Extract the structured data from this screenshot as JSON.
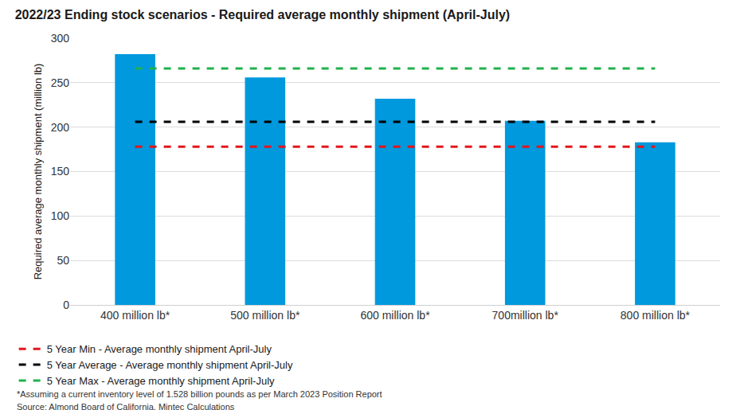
{
  "chart_data": {
    "type": "bar",
    "title": "2022/23 Ending stock scenarios - Required average monthly shipment (April-July)",
    "ylabel": "Required average monthly shipment (million lb)",
    "categories": [
      "400 million lb*",
      "500 million lb*",
      "600 million lb*",
      "700million lb*",
      "800 million lb*"
    ],
    "series": [
      {
        "type": "bar",
        "color": "#0099dd",
        "values": [
          282,
          256,
          232,
          207,
          183
        ]
      },
      {
        "name": "5 Year Min - Average monthly shipment April-July",
        "type": "line",
        "line_style": "dashed",
        "color": "#e3161b",
        "values": [
          178,
          178,
          178,
          178,
          178
        ]
      },
      {
        "name": "5 Year Average - Average monthly shipment April-July",
        "type": "line",
        "line_style": "dashed",
        "color": "#000000",
        "values": [
          206,
          206,
          206,
          206,
          206
        ]
      },
      {
        "name": "5 Year Max - Average monthly shipment April-July",
        "type": "line",
        "line_style": "dashed",
        "color": "#21b24b",
        "values": [
          266,
          266,
          266,
          266,
          266
        ]
      }
    ],
    "ylim": [
      0,
      300
    ],
    "yticks": [
      0,
      50,
      100,
      150,
      200,
      250,
      300
    ],
    "grid": true,
    "legend": "bottom",
    "annotations": [
      "*Assuming a current inventory level of 1.528 billion pounds as per March 2023 Position Report",
      "Source: Almond Board of California, Mintec Calculations"
    ]
  }
}
